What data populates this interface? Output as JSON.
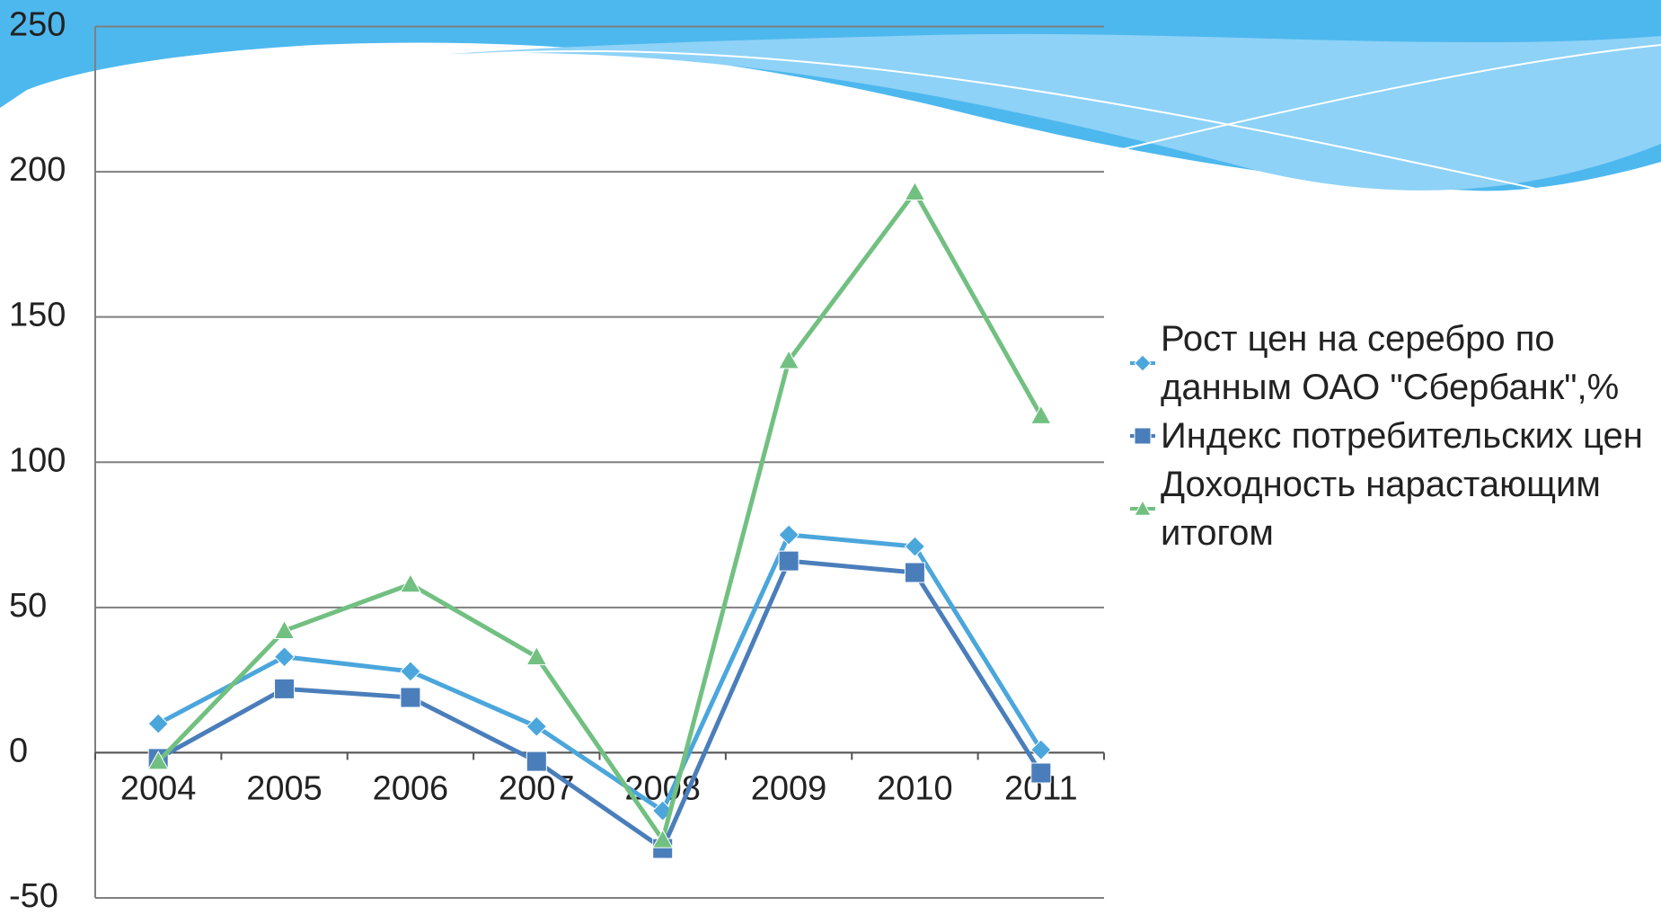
{
  "chart_data": {
    "type": "line",
    "categories": [
      "2004",
      "2005",
      "2006",
      "2007",
      "2008",
      "2009",
      "2010",
      "2011"
    ],
    "series": [
      {
        "name": "Рост цен на серебро по данным ОАО \"Сбербанк\",%",
        "color": "#4ba6dc",
        "marker": "diamond",
        "values": [
          10,
          33,
          28,
          9,
          -20,
          75,
          71,
          1
        ]
      },
      {
        "name": "Индекс потребительских цен",
        "color": "#4a7ebb",
        "marker": "square",
        "values": [
          -2,
          22,
          19,
          -3,
          -33,
          66,
          62,
          -7
        ]
      },
      {
        "name": "Доходность нарастающим итогом",
        "color": "#72c081",
        "marker": "triangle",
        "values": [
          -3,
          42,
          58,
          33,
          -30,
          135,
          193,
          116
        ]
      }
    ],
    "ylim": [
      -50,
      250
    ],
    "yticks": [
      -50,
      0,
      50,
      100,
      150,
      200,
      250
    ],
    "grid": true,
    "legend": "right"
  }
}
